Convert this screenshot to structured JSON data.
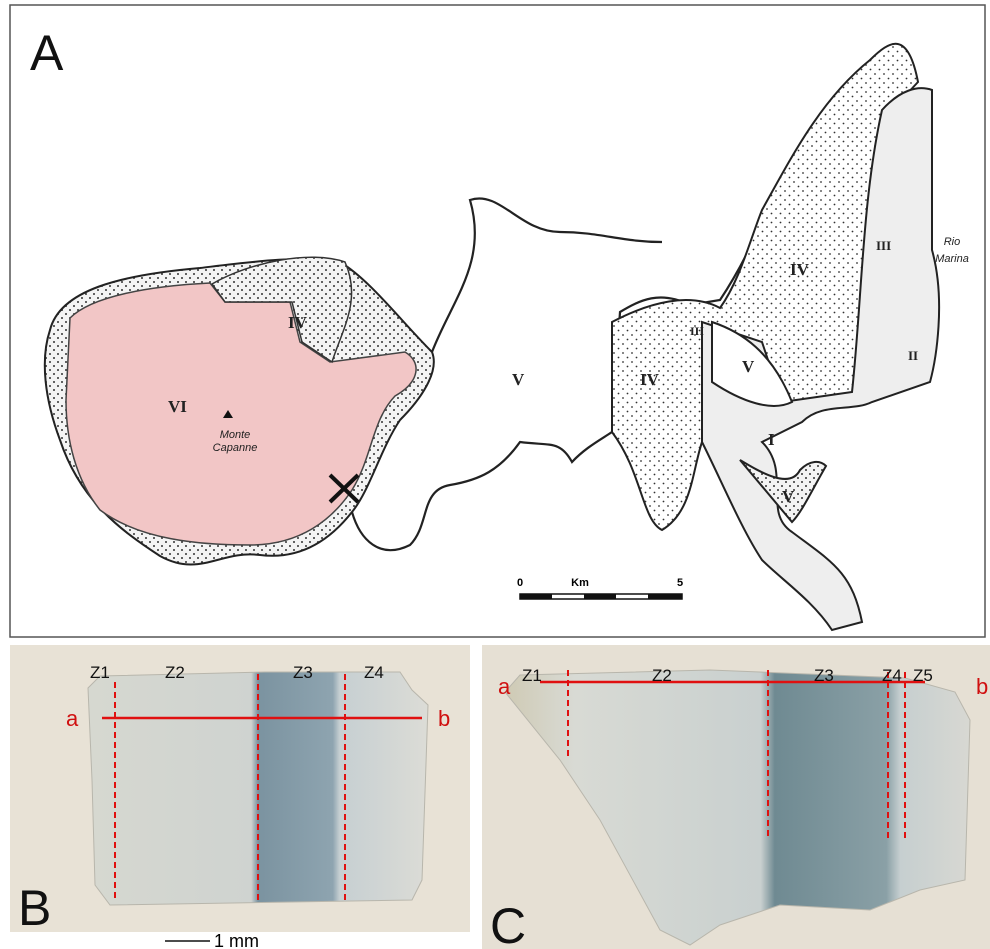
{
  "panel_a": {
    "label": "A",
    "region_labels": [
      "IV",
      "VI",
      "V",
      "IV",
      "III",
      "V",
      "IV",
      "III",
      "II",
      "I",
      "V"
    ],
    "places": [
      {
        "lines": [
          "Monte",
          "Capanne"
        ]
      },
      {
        "lines": [
          "Rio",
          "Marina"
        ]
      }
    ],
    "scale_bar": {
      "start": "0",
      "unit": "Km",
      "end": "5"
    }
  },
  "panel_b": {
    "label": "B",
    "zones": [
      "Z1",
      "Z2",
      "Z3",
      "Z4"
    ],
    "line_ends": [
      "a",
      "b"
    ],
    "scale_bar": "1 mm"
  },
  "panel_c": {
    "label": "C",
    "zones": [
      "Z1",
      "Z2",
      "Z3",
      "Z4",
      "Z5"
    ],
    "line_ends": [
      "a",
      "b"
    ]
  }
}
